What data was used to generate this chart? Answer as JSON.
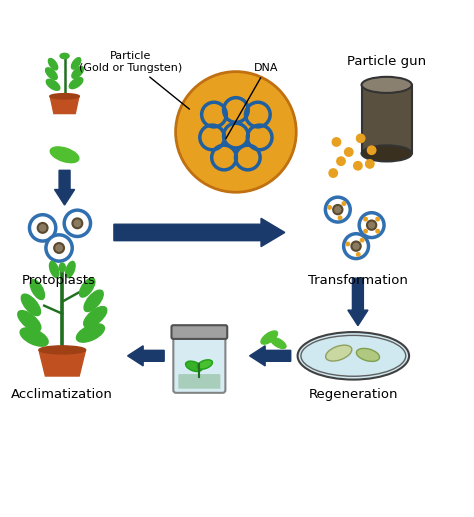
{
  "background_color": "#ffffff",
  "labels": {
    "particle": "Particle\n(Gold or Tungsten)",
    "dna": "DNA",
    "particle_gun": "Particle gun",
    "protoplasts": "Protoplasts",
    "transformation": "Transformation",
    "acclimatization": "Acclimatization",
    "regeneration": "Regeneration"
  },
  "colors": {
    "arrow_dark": "#1a3a6b",
    "particle_circle": "#e8a020",
    "particle_ring": "#2060a0",
    "particle_small": "#e8a020",
    "cylinder_body": "#5a5040",
    "cylinder_top": "#8a8070",
    "protoplast_outer": "#3070b0",
    "protoplast_inner": "#8a7a60",
    "plant_green": "#3db030",
    "pot_color": "#c05020",
    "leaf_green": "#50c030",
    "petri_dish": "#d0e8f0",
    "jar_body": "#d0e8f0",
    "jar_lid": "#a0a0a0"
  }
}
